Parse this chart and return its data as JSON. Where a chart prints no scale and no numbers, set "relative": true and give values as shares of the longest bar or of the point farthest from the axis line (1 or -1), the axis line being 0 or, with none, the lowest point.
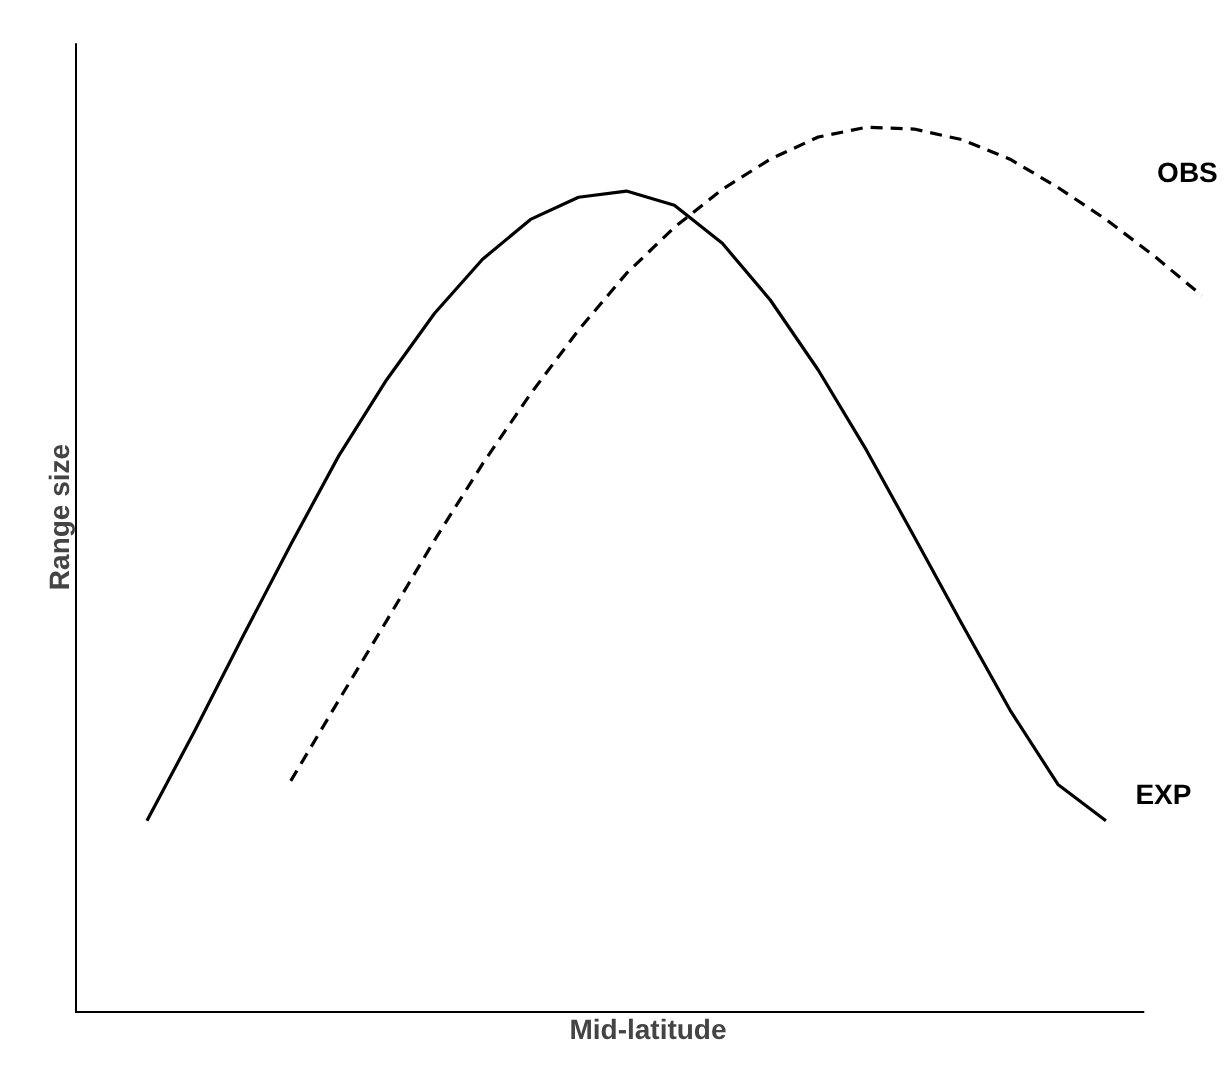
{
  "chart_data": {
    "type": "line",
    "relative": true,
    "xlabel": "Mid-latitude",
    "ylabel": "Range size",
    "tick_labels": false,
    "marker": "none",
    "categories": [
      null,
      null,
      null,
      null,
      null,
      null,
      null,
      null,
      null,
      null,
      null,
      null,
      null,
      null,
      null,
      null,
      null,
      null,
      null,
      null,
      null,
      null,
      null
    ],
    "series": [
      {
        "name": "EXP",
        "color": "#000000",
        "line_style": "solid",
        "values": [
          0.217,
          0.319,
          0.425,
          0.529,
          0.629,
          0.715,
          0.79,
          0.851,
          0.896,
          0.921,
          0.928,
          0.912,
          0.869,
          0.805,
          0.726,
          0.636,
          0.538,
          0.439,
          0.342,
          0.258,
          0.217,
          null,
          null
        ]
      },
      {
        "name": "OBS",
        "color": "#000000",
        "line_style": "dashed",
        "values": [
          null,
          null,
          null,
          0.262,
          0.353,
          0.443,
          0.534,
          0.62,
          0.699,
          0.771,
          0.835,
          0.887,
          0.93,
          0.964,
          0.989,
          1.0,
          0.998,
          0.986,
          0.964,
          0.932,
          0.896,
          0.855,
          0.81
        ]
      }
    ]
  }
}
